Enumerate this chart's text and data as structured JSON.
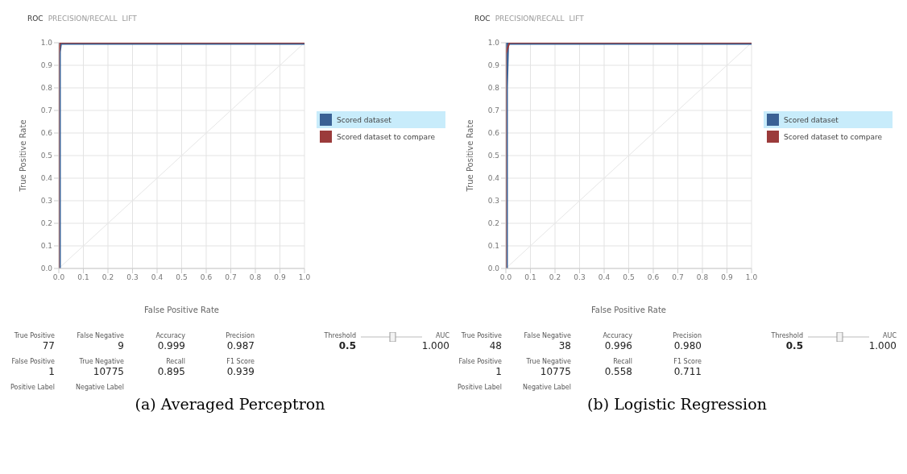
{
  "chart_data": [
    {
      "type": "line",
      "title": "(a) Averaged Perceptron",
      "xlabel": "False Positive Rate",
      "ylabel": "True Positive Rate",
      "legend": "right",
      "grid": true,
      "marker": "none",
      "line_style": "solid",
      "xlim": [
        0,
        1
      ],
      "ylim": [
        0,
        1
      ],
      "xticks": [
        {
          "value": 0,
          "label": "0.0"
        },
        {
          "value": 0.1,
          "label": "0.1"
        },
        {
          "value": 0.2,
          "label": "0.2"
        },
        {
          "value": 0.3,
          "label": "0.3"
        },
        {
          "value": 0.4,
          "label": "0.4"
        },
        {
          "value": 0.5,
          "label": "0.5"
        },
        {
          "value": 0.6,
          "label": "0.6"
        },
        {
          "value": 0.7,
          "label": "0.7"
        },
        {
          "value": 0.8,
          "label": "0.8"
        },
        {
          "value": 0.9,
          "label": "0.9"
        },
        {
          "value": 1,
          "label": "1.0"
        }
      ],
      "yticks": [
        {
          "value": 0,
          "label": "0.0"
        },
        {
          "value": 0.1,
          "label": "0.1"
        },
        {
          "value": 0.2,
          "label": "0.2"
        },
        {
          "value": 0.3,
          "label": "0.3"
        },
        {
          "value": 0.4,
          "label": "0.4"
        },
        {
          "value": 0.5,
          "label": "0.5"
        },
        {
          "value": 0.6,
          "label": "0.6"
        },
        {
          "value": 0.7,
          "label": "0.7"
        },
        {
          "value": 0.8,
          "label": "0.8"
        },
        {
          "value": 0.9,
          "label": "0.9"
        },
        {
          "value": 1,
          "label": "1.0"
        }
      ],
      "series": [
        {
          "color": "#e6e6e6",
          "x": [
            0,
            1
          ],
          "values": [
            0,
            1
          ]
        },
        {
          "name": "Scored dataset",
          "color": "#3a6195",
          "x": [
            0,
            0,
            0.005,
            1
          ],
          "values": [
            0,
            0.96,
            1,
            1
          ]
        },
        {
          "name": "Scored dataset to compare",
          "color": "#9b3b3b",
          "x": [
            0,
            0,
            0.005,
            1
          ],
          "values": [
            0,
            0.95,
            1,
            1
          ]
        }
      ],
      "annotations": [
        "ROC",
        "PRECISION/RECALL",
        "LIFT",
        "True Positive",
        "False Negative",
        "Accuracy",
        "Precision",
        "Threshold",
        "AUC",
        "77",
        "9",
        "0.999",
        "0.987",
        "0.5",
        "1.000",
        "False Positive",
        "True Negative",
        "Recall",
        "F1 Score",
        "1",
        "10775",
        "0.895",
        "0.939",
        "Positive Label",
        "Negative Label"
      ]
    },
    {
      "type": "line",
      "title": "(b) Logistic Regression",
      "xlabel": "False Positive Rate",
      "ylabel": "True Positive Rate",
      "legend": "right",
      "grid": true,
      "marker": "none",
      "line_style": "solid",
      "xlim": [
        0,
        1
      ],
      "ylim": [
        0,
        1
      ],
      "xticks": [
        {
          "value": 0,
          "label": "0.0"
        },
        {
          "value": 0.1,
          "label": "0.1"
        },
        {
          "value": 0.2,
          "label": "0.2"
        },
        {
          "value": 0.3,
          "label": "0.3"
        },
        {
          "value": 0.4,
          "label": "0.4"
        },
        {
          "value": 0.5,
          "label": "0.5"
        },
        {
          "value": 0.6,
          "label": "0.6"
        },
        {
          "value": 0.7,
          "label": "0.7"
        },
        {
          "value": 0.8,
          "label": "0.8"
        },
        {
          "value": 0.9,
          "label": "0.9"
        },
        {
          "value": 1,
          "label": "1.0"
        }
      ],
      "yticks": [
        {
          "value": 0,
          "label": "0.0"
        },
        {
          "value": 0.1,
          "label": "0.1"
        },
        {
          "value": 0.2,
          "label": "0.2"
        },
        {
          "value": 0.3,
          "label": "0.3"
        },
        {
          "value": 0.4,
          "label": "0.4"
        },
        {
          "value": 0.5,
          "label": "0.5"
        },
        {
          "value": 0.6,
          "label": "0.6"
        },
        {
          "value": 0.7,
          "label": "0.7"
        },
        {
          "value": 0.8,
          "label": "0.8"
        },
        {
          "value": 0.9,
          "label": "0.9"
        },
        {
          "value": 1,
          "label": "1.0"
        }
      ],
      "series": [
        {
          "color": "#e6e6e6",
          "x": [
            0,
            1
          ],
          "values": [
            0,
            1
          ]
        },
        {
          "name": "Scored dataset",
          "color": "#3a6195",
          "x": [
            0,
            0,
            0.005,
            1
          ],
          "values": [
            0,
            0.8,
            1,
            1
          ]
        },
        {
          "name": "Scored dataset to compare",
          "color": "#9b3b3b",
          "x": [
            0,
            0,
            0.005,
            0.015,
            1
          ],
          "values": [
            0,
            0.95,
            0.97,
            1,
            1
          ]
        }
      ],
      "annotations": [
        "ROC",
        "PRECISION/RECALL",
        "LIFT",
        "True Positive",
        "False Negative",
        "Accuracy",
        "Precision",
        "Threshold",
        "AUC",
        "48",
        "38",
        "0.996",
        "0.980",
        "0.5",
        "1.000",
        "False Positive",
        "True Negative",
        "Recall",
        "F1 Score",
        "1",
        "10775",
        "0.558",
        "0.711",
        "Positive Label",
        "Negative Label"
      ]
    }
  ]
}
